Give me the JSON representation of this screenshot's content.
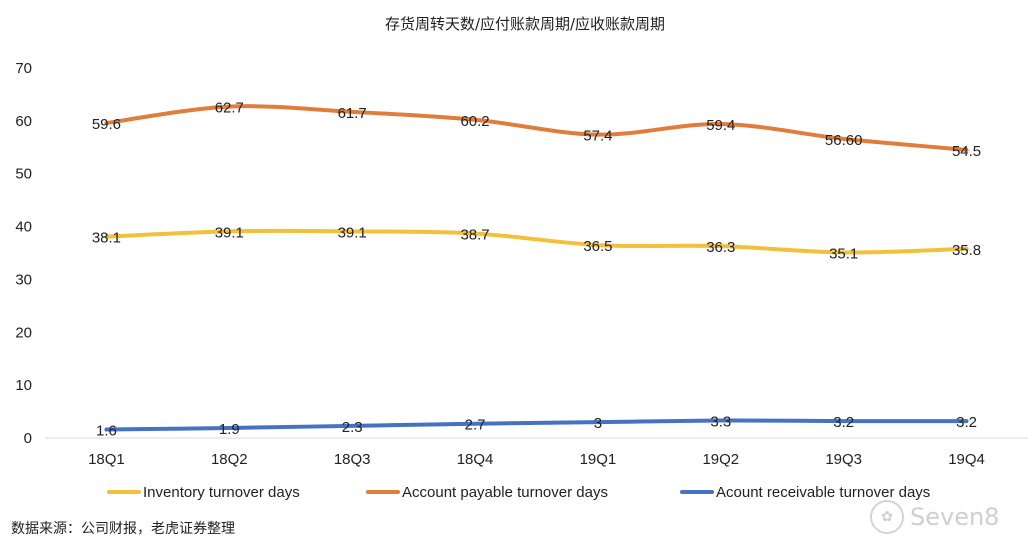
{
  "chart_data": {
    "type": "line",
    "title": "存货周转天数/应付账款周期/应收账款周期",
    "categories": [
      "18Q1",
      "18Q2",
      "18Q3",
      "18Q4",
      "19Q1",
      "19Q2",
      "19Q3",
      "19Q4"
    ],
    "y_ticks": [
      "0",
      "10",
      "20",
      "30",
      "40",
      "50",
      "60",
      "70"
    ],
    "ylim": [
      0,
      70
    ],
    "grid": false,
    "legend_position": "bottom",
    "series": [
      {
        "name": "Inventory turnover days",
        "color": "#f2c03b",
        "values": [
          38.1,
          39.1,
          39.1,
          38.7,
          36.5,
          36.3,
          35.1,
          35.8
        ],
        "labels": [
          "38.1",
          "39.1",
          "39.1",
          "38.7",
          "36.5",
          "36.3",
          "35.1",
          "35.8"
        ]
      },
      {
        "name": "Account payable turnover days",
        "color": "#e07d3a",
        "values": [
          59.6,
          62.7,
          61.7,
          60.2,
          57.4,
          59.4,
          56.6,
          54.5
        ],
        "labels": [
          "59.6",
          "62.7",
          "61.7",
          "60.2",
          "57.4",
          "59.4",
          "56.60",
          "54.5"
        ]
      },
      {
        "name": "Acount receivable turnover days",
        "color": "#4672c4",
        "values": [
          1.6,
          1.9,
          2.3,
          2.7,
          3,
          3.3,
          3.2,
          3.2
        ],
        "labels": [
          "1.6",
          "1.9",
          "2.3",
          "2.7",
          "3",
          "3.3",
          "3.2",
          "3.2"
        ]
      }
    ]
  },
  "source_note": "数据来源：公司财报，老虎证券整理",
  "watermark": "Seven8"
}
